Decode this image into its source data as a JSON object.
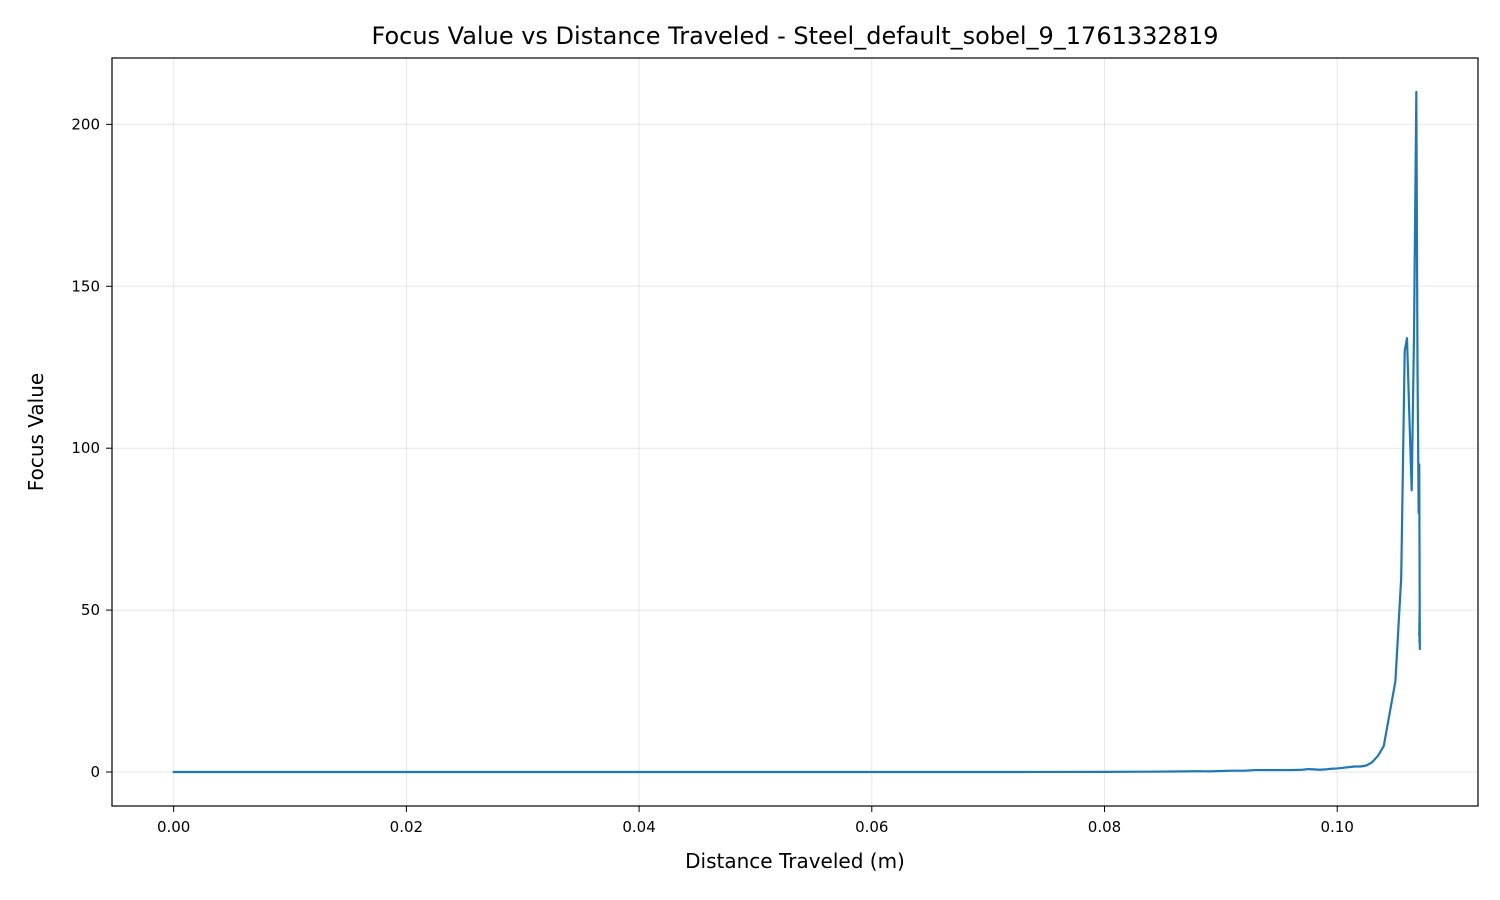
{
  "chart_data": {
    "type": "line",
    "title": "Focus Value vs Distance Traveled - Steel_default_sobel_9_1761332819",
    "xlabel": "Distance Traveled (m)",
    "ylabel": "Focus Value",
    "xlim": [
      -0.0053,
      0.1121
    ],
    "ylim": [
      -10.5,
      220.5
    ],
    "xticks": [
      0.0,
      0.02,
      0.04,
      0.06,
      0.08,
      0.1
    ],
    "xtick_labels": [
      "0.00",
      "0.02",
      "0.04",
      "0.06",
      "0.08",
      "0.10"
    ],
    "yticks": [
      0,
      50,
      100,
      150,
      200
    ],
    "ytick_labels": [
      "0",
      "50",
      "100",
      "150",
      "200"
    ],
    "grid": true,
    "line_color": "#1f77b4",
    "series": [
      {
        "x": [
          0.0,
          0.005,
          0.01,
          0.02,
          0.03,
          0.04,
          0.05,
          0.06,
          0.07,
          0.075,
          0.08,
          0.084,
          0.086,
          0.087,
          0.088,
          0.089,
          0.09,
          0.091,
          0.092,
          0.093,
          0.094,
          0.095,
          0.096,
          0.097,
          0.0975,
          0.098,
          0.0985,
          0.099,
          0.0995,
          0.1,
          0.1005,
          0.101,
          0.1015,
          0.102,
          0.1025,
          0.103,
          0.1035,
          0.104,
          0.1045,
          0.105,
          0.1055,
          0.1058,
          0.106,
          0.1062,
          0.1064,
          0.1066,
          0.1068,
          0.1069,
          0.107,
          0.10705,
          0.1071,
          0.10708,
          0.10705,
          0.1071,
          0.10707
        ],
        "y": [
          0.0,
          0.0,
          0.0,
          0.0,
          0.0,
          0.0,
          0.0,
          0.0,
          0.0,
          0.02,
          0.05,
          0.1,
          0.15,
          0.2,
          0.25,
          0.2,
          0.3,
          0.4,
          0.4,
          0.6,
          0.6,
          0.6,
          0.6,
          0.7,
          0.9,
          0.8,
          0.7,
          0.8,
          1.0,
          1.1,
          1.3,
          1.5,
          1.7,
          1.7,
          2.0,
          3.0,
          5.0,
          8.0,
          18.0,
          28.0,
          60.0,
          130.0,
          134.0,
          110.0,
          87.0,
          135.0,
          210.0,
          125.0,
          80.0,
          95.0,
          38.0,
          50.0,
          42.0,
          46.0,
          40.0
        ]
      }
    ]
  }
}
